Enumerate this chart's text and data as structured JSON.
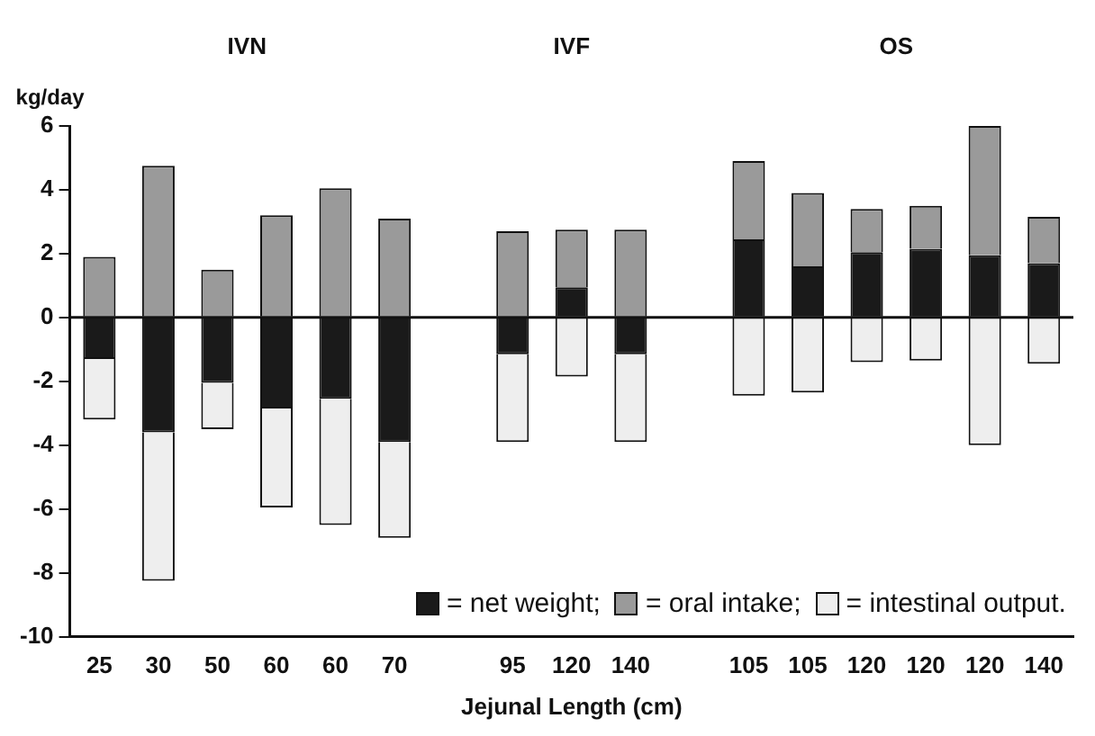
{
  "chart_data": {
    "type": "bar",
    "stacked": true,
    "xlabel": "Jejunal Length (cm)",
    "ylabel": "kg/day",
    "annotations": [
      "IVN",
      "IVF",
      "OS"
    ],
    "categories": [
      "25",
      "30",
      "50",
      "60",
      "60",
      "70",
      null,
      "95",
      "120",
      "140",
      null,
      "105",
      "105",
      "120",
      "120",
      "120",
      "140"
    ],
    "series": [
      {
        "name": "= net weight;",
        "color": "#1a1a1a",
        "values": [
          -1.3,
          -3.6,
          -2.05,
          -2.85,
          -2.55,
          -3.9,
          null,
          -1.15,
          0.95,
          -1.15,
          null,
          2.45,
          1.6,
          2.05,
          2.15,
          1.95,
          1.7
        ]
      },
      {
        "name": "= oral intake;",
        "color": "#9a9a9a",
        "values": [
          1.9,
          4.75,
          1.5,
          3.2,
          4.05,
          3.1,
          null,
          2.7,
          1.8,
          2.75,
          null,
          2.45,
          2.3,
          1.35,
          1.35,
          4.05,
          1.45
        ]
      },
      {
        "name": "= intestinal output.",
        "color": "#eeeeee",
        "values": [
          -1.9,
          -4.65,
          -1.45,
          -3.1,
          -3.95,
          -3.0,
          null,
          -2.75,
          -1.85,
          -2.75,
          null,
          -2.45,
          -2.35,
          -1.4,
          -1.35,
          -4.0,
          -1.45
        ]
      }
    ],
    "ylim": [
      -10,
      6
    ],
    "yticks": [
      -10,
      -8,
      -6,
      -4,
      -2,
      0,
      2,
      4,
      6
    ],
    "ref_lines": [
      {
        "axis": "y",
        "value": 0,
        "color": "#111111"
      }
    ],
    "legend": "bottom right",
    "grid": false
  }
}
